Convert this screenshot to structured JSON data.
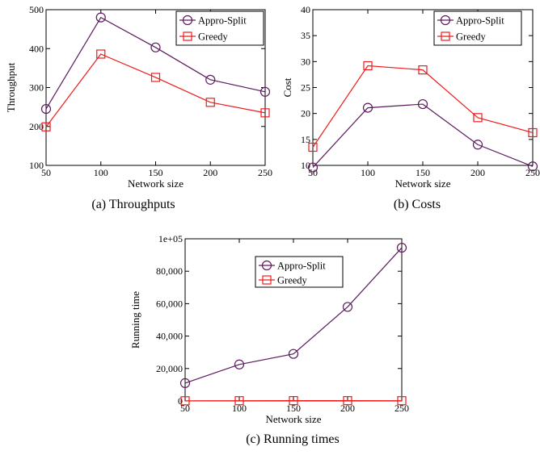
{
  "colors": {
    "appro": "#5b1a5e",
    "greedy": "#ee1c1c",
    "axis": "#000000"
  },
  "chart_data": [
    {
      "type": "line",
      "caption": "(a)  Throughputs",
      "xlabel": "Network size",
      "ylabel": "Throughput",
      "x": [
        50,
        100,
        150,
        200,
        250
      ],
      "xlim": [
        50,
        250
      ],
      "ylim": [
        100,
        500
      ],
      "xticks": [
        "50",
        "100",
        "150",
        "200",
        "250"
      ],
      "yticks": [
        "100",
        "200",
        "300",
        "400",
        "500"
      ],
      "ytick_values": [
        100,
        200,
        300,
        400,
        500
      ],
      "legend_position": "top-right",
      "series": [
        {
          "name": "Appro-Split",
          "marker": "circle",
          "values": [
            245,
            480,
            403,
            320,
            289
          ]
        },
        {
          "name": "Greedy",
          "marker": "square",
          "values": [
            199,
            386,
            326,
            262,
            235
          ]
        }
      ]
    },
    {
      "type": "line",
      "caption": "(b)  Costs",
      "xlabel": "Network size",
      "ylabel": "Cost",
      "x": [
        50,
        100,
        150,
        200,
        250
      ],
      "xlim": [
        50,
        250
      ],
      "ylim": [
        10,
        40
      ],
      "xticks": [
        "50",
        "100",
        "150",
        "200",
        "250"
      ],
      "yticks": [
        "10",
        "15",
        "20",
        "25",
        "30",
        "35",
        "40"
      ],
      "ytick_values": [
        10,
        15,
        20,
        25,
        30,
        35,
        40
      ],
      "legend_position": "top-right",
      "series": [
        {
          "name": "Appro-Split",
          "marker": "circle",
          "values": [
            9.6,
            21.1,
            21.8,
            14.0,
            9.8
          ]
        },
        {
          "name": "Greedy",
          "marker": "square",
          "values": [
            13.5,
            29.2,
            28.4,
            19.2,
            16.3
          ]
        }
      ]
    },
    {
      "type": "line",
      "caption": "(c)  Running times",
      "xlabel": "Network size",
      "ylabel": "Running time",
      "x": [
        50,
        100,
        150,
        200,
        250
      ],
      "xlim": [
        50,
        250
      ],
      "ylim": [
        0,
        100000
      ],
      "xticks": [
        "50",
        "100",
        "150",
        "200",
        "250"
      ],
      "yticks": [
        "0",
        "20,000",
        "40,000",
        "60,000",
        "80,000",
        "1e+05"
      ],
      "ytick_values": [
        0,
        20000,
        40000,
        60000,
        80000,
        100000
      ],
      "legend_position": "top-center",
      "series": [
        {
          "name": "Appro-Split",
          "marker": "circle",
          "values": [
            11000,
            22500,
            29000,
            58000,
            94500
          ]
        },
        {
          "name": "Greedy",
          "marker": "square",
          "values": [
            100,
            150,
            200,
            180,
            160
          ]
        }
      ]
    }
  ]
}
